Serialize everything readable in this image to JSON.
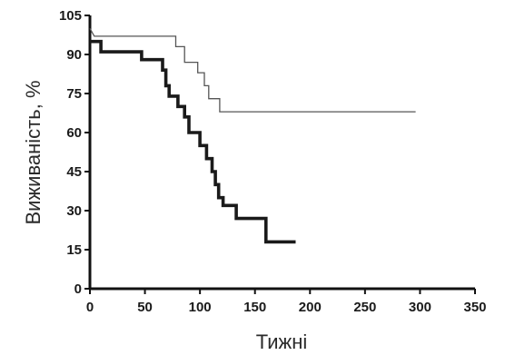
{
  "chart_data": {
    "type": "line",
    "step": true,
    "xlabel": "Тижні",
    "ylabel": "Виживаність, %",
    "xlim": [
      0,
      350
    ],
    "ylim": [
      0,
      105
    ],
    "x_ticks": [
      0,
      50,
      100,
      150,
      200,
      250,
      300,
      350
    ],
    "y_ticks": [
      0,
      15,
      30,
      45,
      60,
      75,
      90,
      105
    ],
    "grid": false,
    "legend": "none",
    "series": [
      {
        "style": "thin",
        "color": "#555555",
        "points": [
          [
            0,
            100
          ],
          [
            4,
            97
          ],
          [
            78,
            97
          ],
          [
            78,
            93
          ],
          [
            86,
            93
          ],
          [
            86,
            87
          ],
          [
            98,
            87
          ],
          [
            98,
            83
          ],
          [
            104,
            83
          ],
          [
            104,
            78
          ],
          [
            108,
            78
          ],
          [
            108,
            73
          ],
          [
            118,
            73
          ],
          [
            118,
            68
          ],
          [
            296,
            68
          ]
        ]
      },
      {
        "style": "thick",
        "color": "#1a1a1a",
        "points": [
          [
            0,
            95
          ],
          [
            10,
            95
          ],
          [
            10,
            91
          ],
          [
            47,
            91
          ],
          [
            47,
            88
          ],
          [
            66,
            88
          ],
          [
            66,
            84
          ],
          [
            69,
            84
          ],
          [
            69,
            78
          ],
          [
            72,
            78
          ],
          [
            72,
            74
          ],
          [
            80,
            74
          ],
          [
            80,
            70
          ],
          [
            86,
            70
          ],
          [
            86,
            66
          ],
          [
            90,
            66
          ],
          [
            90,
            60
          ],
          [
            100,
            60
          ],
          [
            100,
            55
          ],
          [
            106,
            55
          ],
          [
            106,
            50
          ],
          [
            111,
            50
          ],
          [
            111,
            45
          ],
          [
            114,
            45
          ],
          [
            114,
            40
          ],
          [
            117,
            40
          ],
          [
            117,
            35
          ],
          [
            121,
            35
          ],
          [
            121,
            32
          ],
          [
            133,
            32
          ],
          [
            133,
            27
          ],
          [
            160,
            27
          ],
          [
            160,
            18
          ],
          [
            187,
            18
          ]
        ]
      }
    ]
  }
}
